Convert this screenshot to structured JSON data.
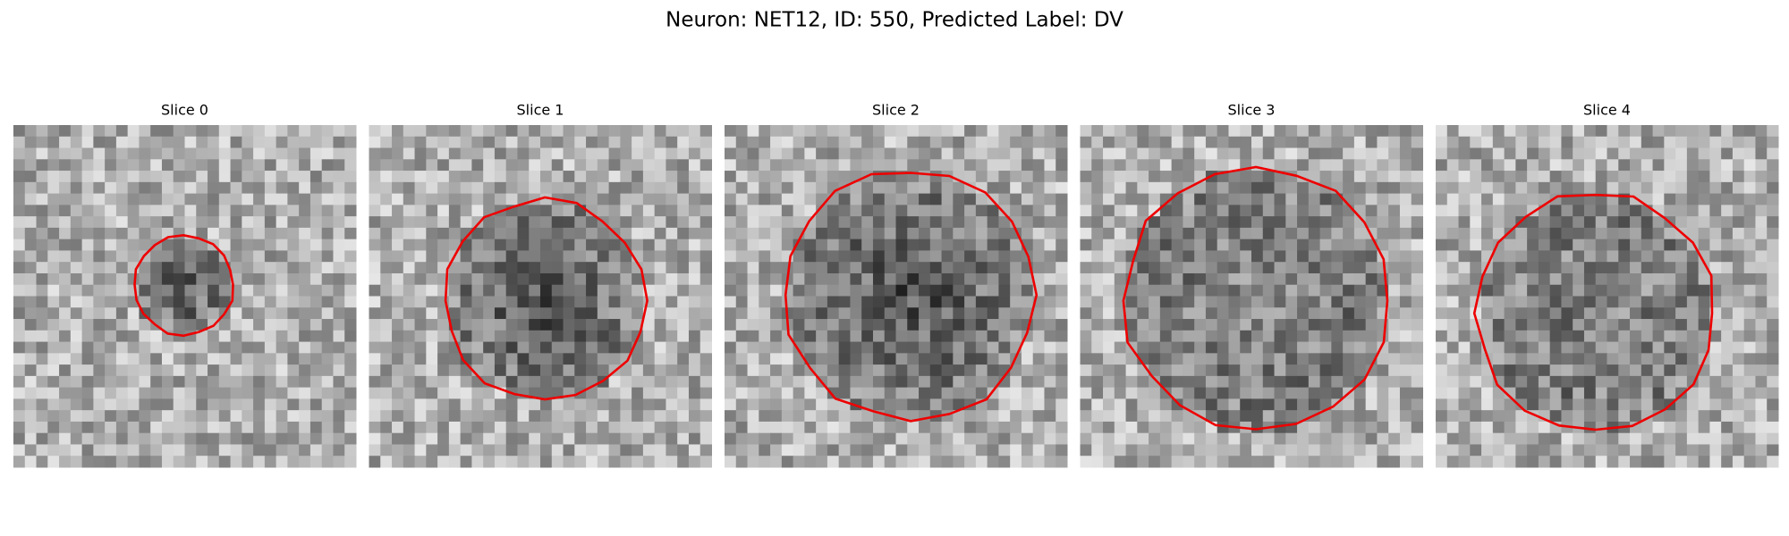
{
  "title": "Neuron: NET12, ID: 550, Predicted Label: DV",
  "panels": [
    {
      "title": "Slice 0"
    },
    {
      "title": "Slice 1"
    },
    {
      "title": "Slice 2"
    },
    {
      "title": "Slice 3"
    },
    {
      "title": "Slice 4"
    }
  ]
}
